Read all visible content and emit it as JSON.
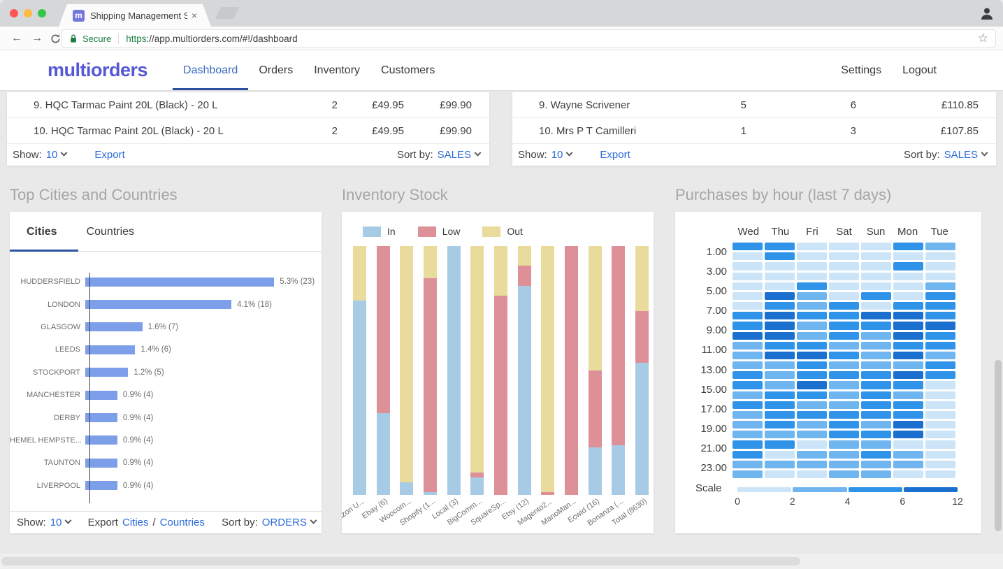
{
  "browser": {
    "traffic_lights": [
      "#fc5753",
      "#fdbc40",
      "#33c748"
    ],
    "tab": {
      "title": "Shipping Management Softwar",
      "favicon_letter": "m",
      "favicon_color": "#7577dd"
    },
    "icons": {
      "close": "×",
      "back": "←",
      "forward": "→",
      "star": "☆"
    },
    "toolbar": {
      "secure_label": "Secure",
      "url_protocol": "https",
      "url_rest": "://app.multiorders.com/#!/dashboard"
    }
  },
  "nav": {
    "logo": "multiorders",
    "items": [
      {
        "label": "Dashboard",
        "active": true
      },
      {
        "label": "Orders",
        "active": false
      },
      {
        "label": "Inventory",
        "active": false
      },
      {
        "label": "Customers",
        "active": false
      }
    ],
    "right_items": [
      "Settings",
      "Logout"
    ]
  },
  "products_table": {
    "rows": [
      {
        "name": "9. HQC Tarmac Paint 20L (Black) - 20 L",
        "cols": [
          "2",
          "£49.95",
          "£99.90"
        ]
      },
      {
        "name": "10. HQC Tarmac Paint 20L (Black) - 20 L",
        "cols": [
          "2",
          "£49.95",
          "£99.90"
        ]
      }
    ],
    "footer": {
      "show_label": "Show:",
      "show_value": "10",
      "export_label": "Export",
      "sort_label": "Sort by:",
      "sort_value": "SALES"
    }
  },
  "customers_table": {
    "rows": [
      {
        "name": "9. Wayne Scrivener",
        "cols": [
          "5",
          "6",
          "£110.85"
        ]
      },
      {
        "name": "10. Mrs P T Camilleri",
        "cols": [
          "1",
          "3",
          "£107.85"
        ]
      }
    ],
    "footer": {
      "show_label": "Show:",
      "show_value": "10",
      "export_label": "Export",
      "sort_label": "Sort by:",
      "sort_value": "SALES"
    }
  },
  "cities_panel": {
    "title": "Top Cities and Countries",
    "tabs": [
      {
        "label": "Cities",
        "active": true
      },
      {
        "label": "Countries",
        "active": false
      }
    ],
    "chart_data": {
      "type": "bar",
      "orientation": "horizontal",
      "bar_color": "#7d9ee8",
      "categories": [
        "HUDDERSFIELD",
        "LONDON",
        "GLASGOW",
        "LEEDS",
        "STOCKPORT",
        "MANCHESTER",
        "DERBY",
        "HEMEL HEMPSTE...",
        "TAUNTON",
        "LIVERPOOL"
      ],
      "values_pct": [
        5.3,
        4.1,
        1.6,
        1.4,
        1.2,
        0.9,
        0.9,
        0.9,
        0.9,
        0.9
      ],
      "counts": [
        23,
        18,
        7,
        6,
        5,
        4,
        4,
        4,
        4,
        4
      ],
      "labels": [
        "5.3% (23)",
        "4.1% (18)",
        "1.6% (7)",
        "1.4% (6)",
        "1.2% (5)",
        "0.9% (4)",
        "0.9% (4)",
        "0.9% (4)",
        "0.9% (4)",
        "0.9% (4)"
      ],
      "xlim": [
        0,
        5.6
      ]
    },
    "footer": {
      "show_label": "Show:",
      "show_value": "10",
      "export_label": "Export",
      "export_link_1": "Cities",
      "export_sep": "/",
      "export_link_2": "Countries",
      "sort_label": "Sort by:",
      "sort_value": "ORDERS"
    }
  },
  "inventory_panel": {
    "title": "Inventory Stock",
    "chart_data": {
      "type": "bar",
      "stacked": true,
      "unit": "percent of column height, stacked top to bottom as Out, Low, In",
      "legend": [
        {
          "name": "In",
          "color": "#a7cbe5"
        },
        {
          "name": "Low",
          "color": "#dd9097"
        },
        {
          "name": "Out",
          "color": "#e9db9c"
        }
      ],
      "categories": [
        "Amazon U...",
        "Ebay (6)",
        "Woocom...",
        "Shopify (1...",
        "Local (3)",
        "BigComm...",
        "SquareSp...",
        "Etsy (12)",
        "Magento2...",
        "ManoMan...",
        "Ecwid (16)",
        "Bonanza (...",
        "Total (8630)"
      ],
      "series": [
        {
          "name": "Out",
          "values_pct": [
            22,
            0,
            95,
            13,
            0,
            91,
            20,
            8,
            99,
            0,
            50,
            0,
            26
          ]
        },
        {
          "name": "Low",
          "values_pct": [
            0,
            67,
            0,
            86,
            0,
            2,
            80,
            8,
            1,
            100,
            31,
            80,
            21
          ]
        },
        {
          "name": "In",
          "values_pct": [
            78,
            33,
            5,
            1,
            100,
            7,
            0,
            84,
            0,
            0,
            19,
            20,
            53
          ]
        }
      ]
    }
  },
  "purchases_panel": {
    "title": "Purchases by hour (last 7 days)",
    "chart_data": {
      "type": "heatmap",
      "columns": [
        "Wed",
        "Thu",
        "Fri",
        "Sat",
        "Sun",
        "Mon",
        "Tue"
      ],
      "row_labels": [
        "1.00",
        "3.00",
        "5.00",
        "7.00",
        "9.00",
        "11.00",
        "13.00",
        "15.00",
        "17.00",
        "19.00",
        "21.00",
        "23.00"
      ],
      "levels": [
        "#cbe4f8",
        "#6fb5f0",
        "#2f93ea",
        "#1b70cf"
      ],
      "grid": [
        [
          2,
          2,
          0,
          0,
          0,
          2,
          1
        ],
        [
          0,
          2,
          0,
          0,
          0,
          0,
          0
        ],
        [
          0,
          0,
          0,
          0,
          0,
          2,
          0
        ],
        [
          0,
          0,
          0,
          0,
          0,
          0,
          0
        ],
        [
          0,
          0,
          2,
          0,
          0,
          0,
          1
        ],
        [
          0,
          3,
          1,
          0,
          2,
          0,
          2
        ],
        [
          0,
          2,
          1,
          2,
          0,
          2,
          2
        ],
        [
          2,
          3,
          2,
          2,
          3,
          3,
          2
        ],
        [
          2,
          3,
          1,
          2,
          2,
          3,
          3
        ],
        [
          3,
          3,
          1,
          2,
          1,
          3,
          2
        ],
        [
          1,
          2,
          2,
          1,
          1,
          2,
          2
        ],
        [
          1,
          3,
          3,
          2,
          1,
          3,
          1
        ],
        [
          1,
          1,
          2,
          1,
          1,
          1,
          2
        ],
        [
          2,
          1,
          2,
          2,
          2,
          3,
          2
        ],
        [
          2,
          1,
          3,
          1,
          2,
          2,
          0
        ],
        [
          1,
          2,
          2,
          1,
          2,
          1,
          0
        ],
        [
          2,
          2,
          1,
          1,
          2,
          2,
          0
        ],
        [
          1,
          2,
          2,
          2,
          2,
          2,
          0
        ],
        [
          1,
          2,
          1,
          2,
          1,
          3,
          0
        ],
        [
          1,
          1,
          1,
          2,
          2,
          3,
          0
        ],
        [
          2,
          2,
          0,
          1,
          1,
          0,
          0
        ],
        [
          2,
          0,
          1,
          1,
          2,
          1,
          0
        ],
        [
          1,
          1,
          1,
          1,
          1,
          1,
          0
        ],
        [
          1,
          0,
          0,
          1,
          1,
          0,
          0
        ]
      ],
      "scale": {
        "label": "Scale",
        "ticks": [
          "0",
          "2",
          "4",
          "6",
          "12"
        ]
      }
    }
  }
}
